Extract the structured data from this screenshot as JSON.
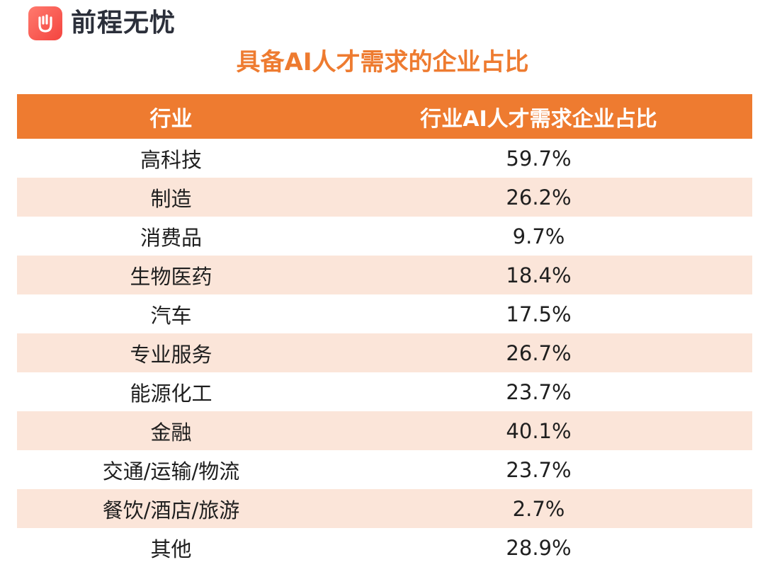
{
  "brand": {
    "name": "前程无忧",
    "logo_icon": "raised-hand-icon",
    "logo_color": "#f4443f"
  },
  "title": "具备AI人才需求的企业占比",
  "colors": {
    "accent": "#ee7b30",
    "stripe": "#fbe5d9"
  },
  "table": {
    "headers": [
      "行业",
      "行业AI人才需求企业占比"
    ],
    "rows": [
      {
        "industry": "高科技",
        "value": "59.7%"
      },
      {
        "industry": "制造",
        "value": "26.2%"
      },
      {
        "industry": "消费品",
        "value": "9.7%"
      },
      {
        "industry": "生物医药",
        "value": "18.4%"
      },
      {
        "industry": "汽车",
        "value": "17.5%"
      },
      {
        "industry": "专业服务",
        "value": "26.7%"
      },
      {
        "industry": "能源化工",
        "value": "23.7%"
      },
      {
        "industry": "金融",
        "value": "40.1%"
      },
      {
        "industry": "交通/运输/物流",
        "value": "23.7%"
      },
      {
        "industry": "餐饮/酒店/旅游",
        "value": "2.7%"
      },
      {
        "industry": "其他",
        "value": "28.9%"
      }
    ]
  }
}
